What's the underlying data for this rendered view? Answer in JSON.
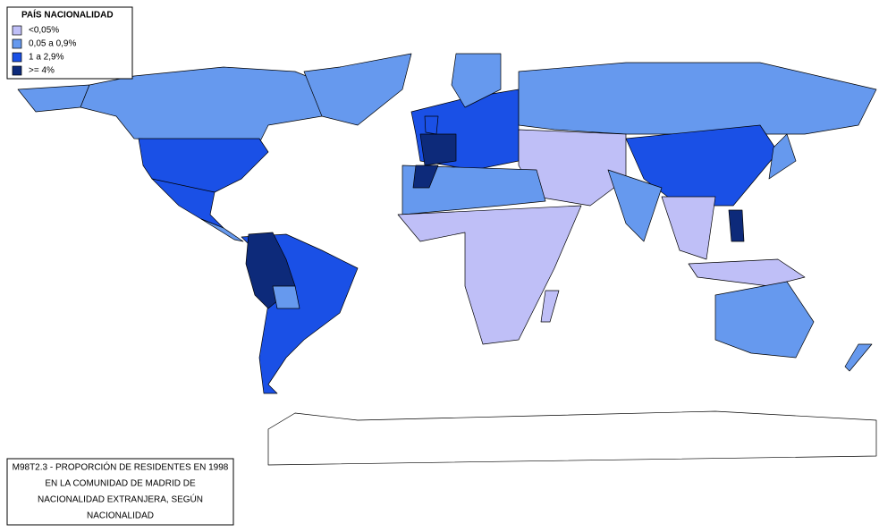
{
  "legend": {
    "title": "PAÍS NACIONALIDAD",
    "items": [
      {
        "label": "<0,05%",
        "color": "#bfbff7"
      },
      {
        "label": "0,05 a 0,9%",
        "color": "#6699ee"
      },
      {
        "label": "1 a 2,9%",
        "color": "#1a50e6"
      },
      {
        "label": ">= 4%",
        "color": "#0d2a7a"
      }
    ]
  },
  "caption": {
    "lines": [
      "M98T2.3 - PROPORCIÓN DE RESIDENTES EN 1998",
      "EN LA COMUNIDAD DE MADRID DE",
      "NACIONALIDAD EXTRANJERA, SEGÚN",
      "NACIONALIDAD"
    ]
  }
}
